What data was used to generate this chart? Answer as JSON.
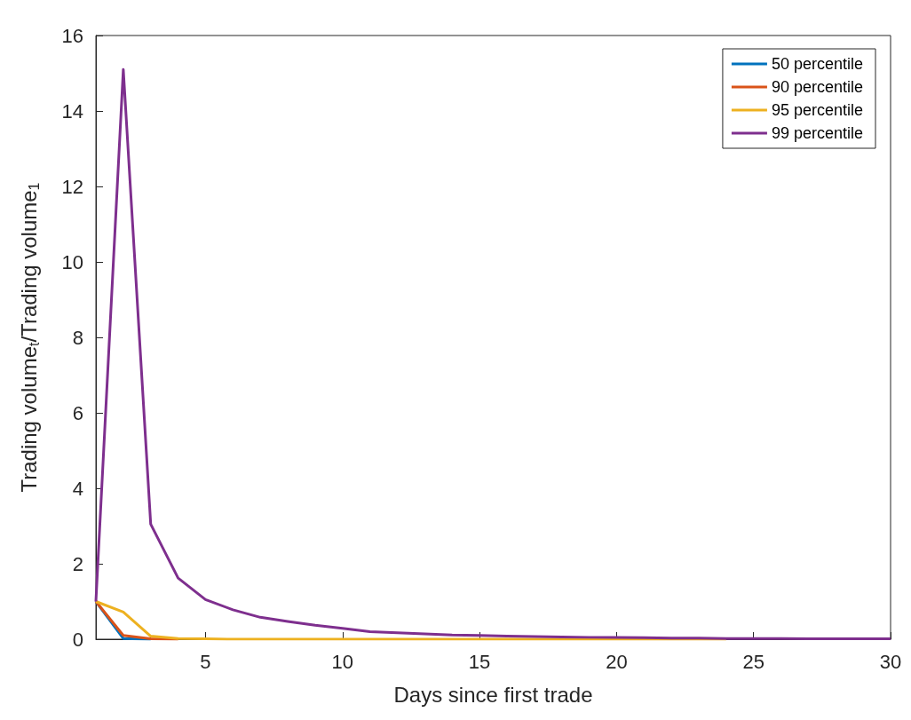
{
  "chart_data": {
    "type": "line",
    "xlabel": "Days since first trade",
    "ylabel": "Trading volume$_{t}$/Trading volume$_{1}$",
    "x": [
      1,
      2,
      3,
      4,
      5,
      6,
      7,
      8,
      9,
      10,
      11,
      12,
      13,
      14,
      15,
      16,
      17,
      18,
      19,
      20,
      21,
      22,
      23,
      24,
      25,
      26,
      27,
      28,
      29,
      30
    ],
    "series": [
      {
        "name": "50 percentile",
        "color": "#0072bd",
        "values": [
          1,
          0.02,
          0,
          null,
          null,
          null,
          null,
          null,
          null,
          null,
          null,
          null,
          null,
          null,
          null,
          null,
          null,
          null,
          null,
          null,
          null,
          null,
          null,
          null,
          null,
          null,
          null,
          null,
          null,
          null
        ]
      },
      {
        "name": "90 percentile",
        "color": "#d95319",
        "values": [
          1,
          0.1,
          0.01,
          0,
          null,
          null,
          null,
          null,
          null,
          null,
          null,
          null,
          null,
          null,
          null,
          null,
          null,
          null,
          null,
          null,
          null,
          null,
          null,
          null,
          null,
          null,
          null,
          null,
          null,
          null
        ]
      },
      {
        "name": "95 percentile",
        "color": "#edb120",
        "values": [
          1,
          0.72,
          0.08,
          0.02,
          0.01,
          0,
          0,
          0,
          0,
          0,
          0,
          0,
          0,
          0,
          0,
          0,
          0,
          0,
          0,
          0,
          0,
          0,
          0,
          0,
          null,
          null,
          null,
          null,
          null,
          null
        ]
      },
      {
        "name": "99 percentile",
        "color": "#7e2f8e",
        "values": [
          1,
          15.1,
          3.05,
          1.62,
          1.05,
          0.78,
          0.58,
          0.47,
          0.37,
          0.29,
          0.2,
          0.17,
          0.14,
          0.11,
          0.1,
          0.08,
          0.07,
          0.06,
          0.05,
          0.05,
          0.04,
          0.03,
          0.03,
          0.02,
          0.02,
          0.02,
          0.01,
          0.01,
          0.01,
          0.01
        ]
      }
    ],
    "xlim": [
      1,
      30
    ],
    "xticks": [
      5,
      10,
      15,
      20,
      25,
      30
    ],
    "ylim": [
      0,
      16
    ],
    "yticks": [
      0,
      2,
      4,
      6,
      8,
      10,
      12,
      14,
      16
    ],
    "grid": false,
    "legend": "top right",
    "marker": "none",
    "line_style": "solid"
  }
}
